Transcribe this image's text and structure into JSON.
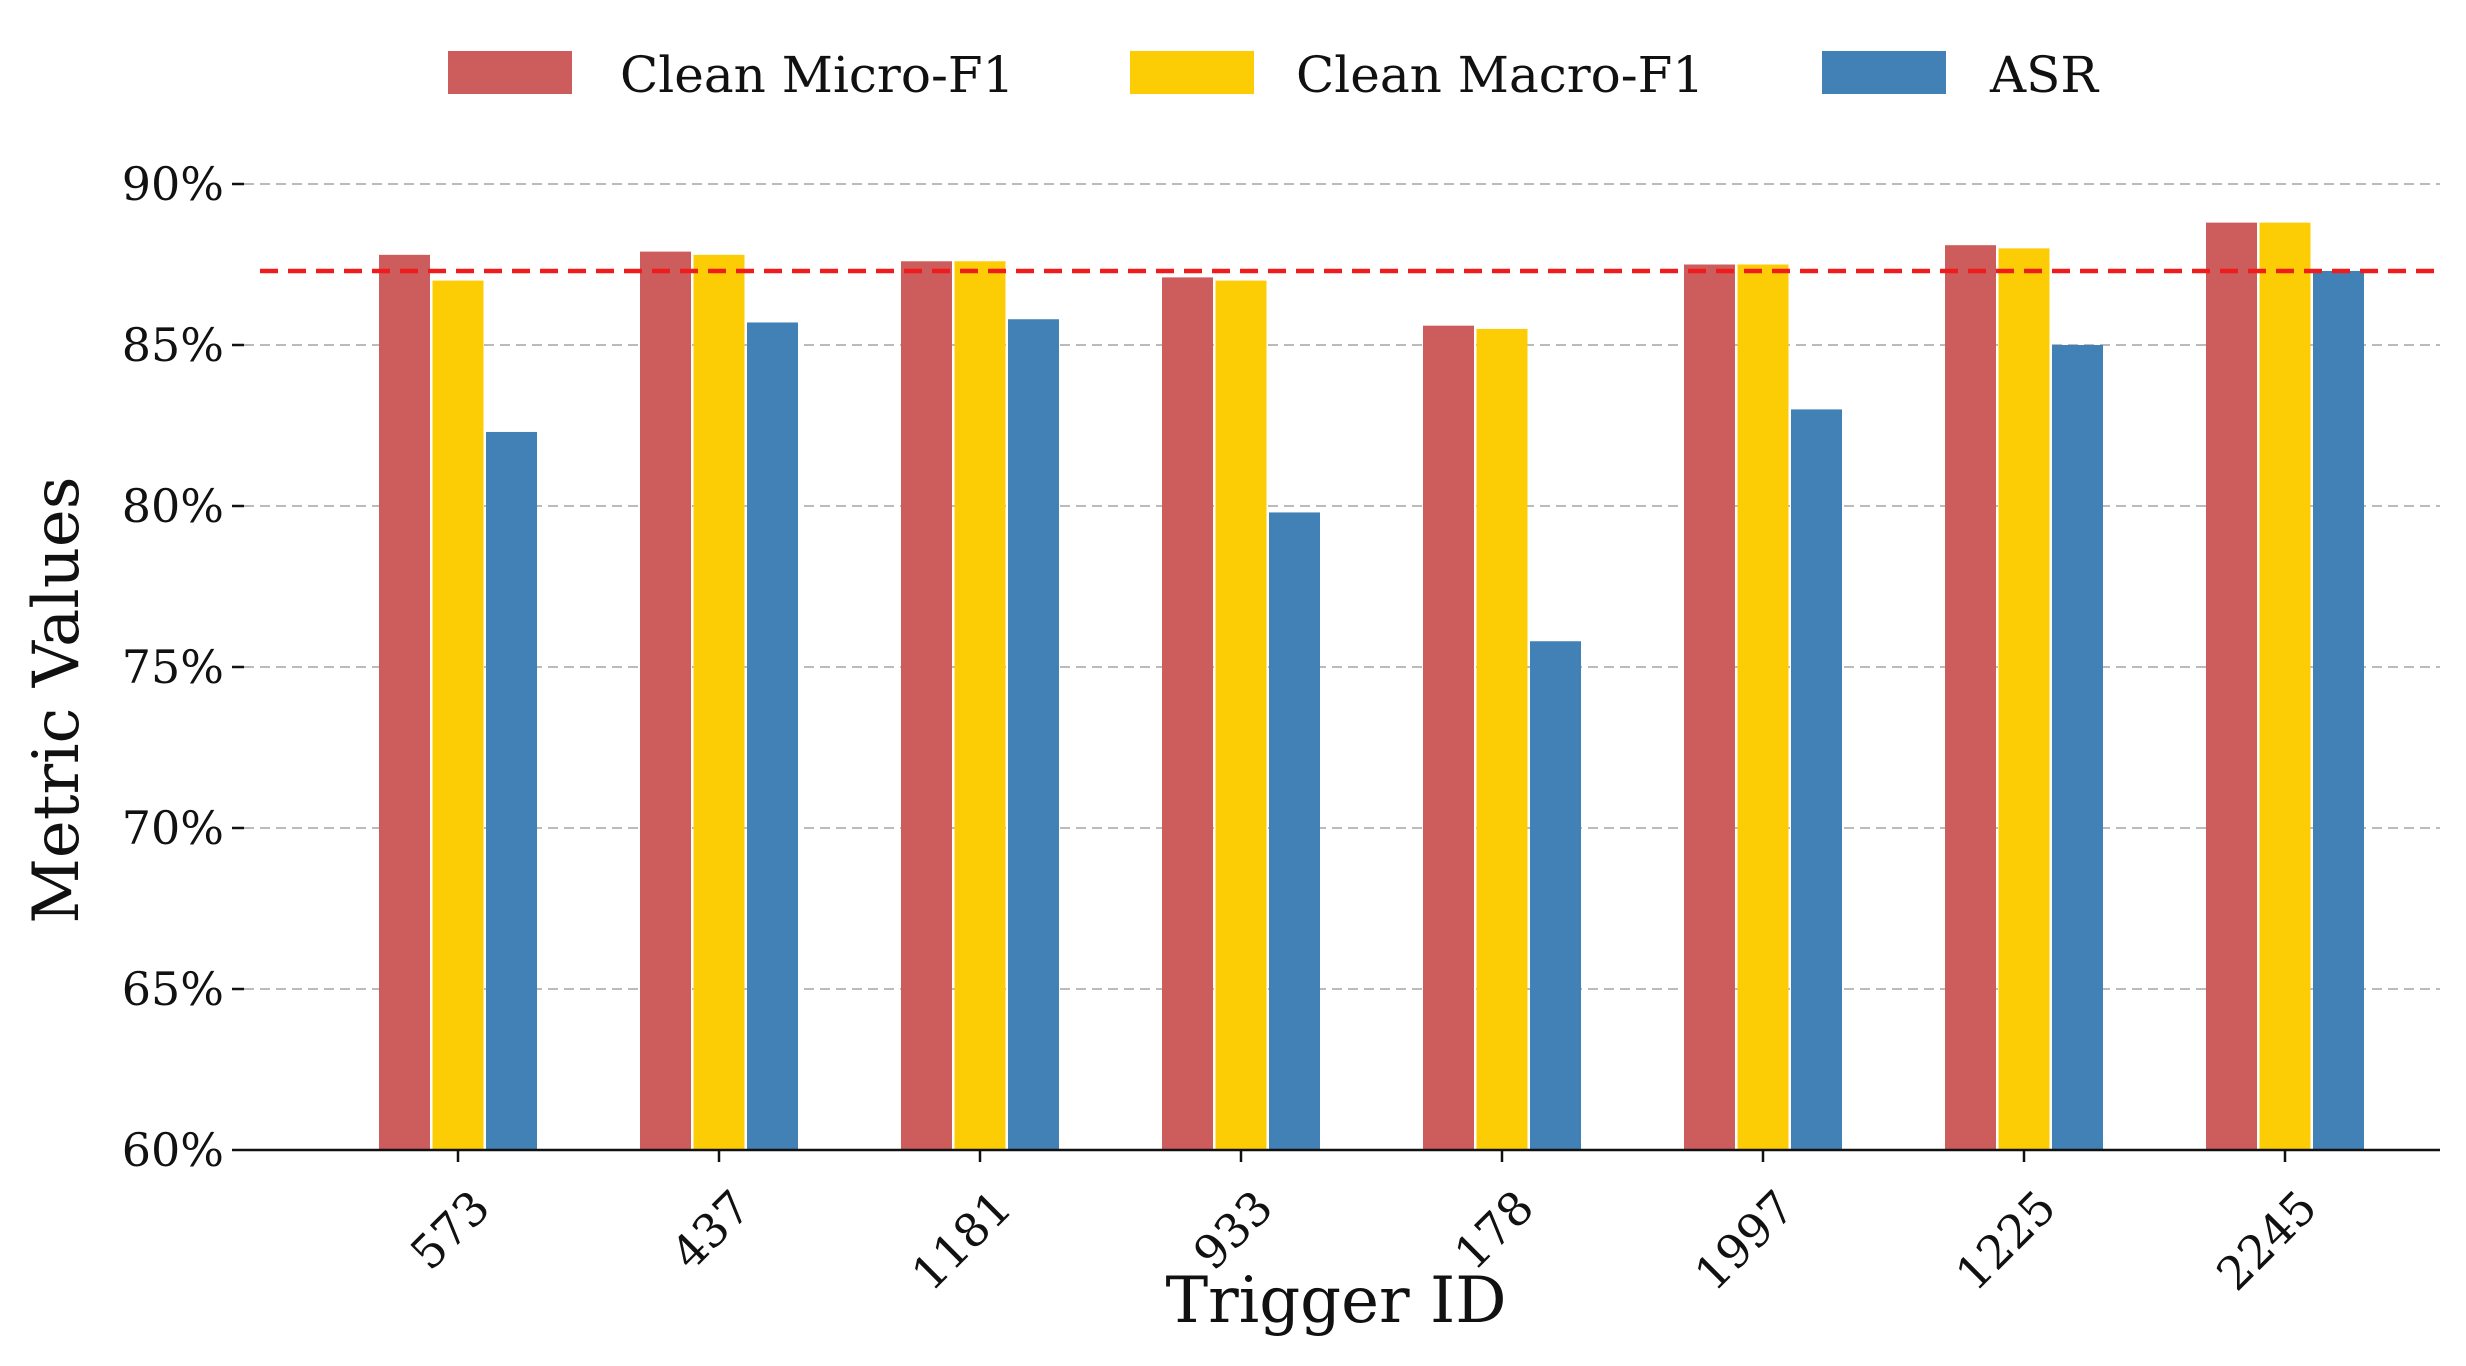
{
  "chart_data": {
    "type": "bar",
    "title": "",
    "xlabel": "Trigger ID",
    "ylabel": "Metric Values",
    "categories": [
      "573",
      "437",
      "1181",
      "933",
      "178",
      "1997",
      "1225",
      "2245"
    ],
    "series": [
      {
        "name": "Clean Micro-F1",
        "color": "#cd5c5c",
        "values": [
          87.8,
          87.9,
          87.6,
          87.1,
          85.6,
          87.5,
          88.1,
          88.8
        ]
      },
      {
        "name": "Clean Macro-F1",
        "color": "#fccc04",
        "values": [
          87.0,
          87.8,
          87.6,
          87.0,
          85.5,
          87.5,
          88.0,
          88.8
        ]
      },
      {
        "name": "ASR",
        "color": "#4181b6",
        "values": [
          82.3,
          85.7,
          85.8,
          79.8,
          75.8,
          83.0,
          85.0,
          87.3
        ]
      }
    ],
    "ylim": [
      60,
      90
    ],
    "yticks": [
      60,
      65,
      70,
      75,
      80,
      85,
      90
    ],
    "ytick_labels": [
      "60%",
      "65%",
      "70%",
      "75%",
      "80%",
      "85%",
      "90%"
    ],
    "reference_line": {
      "value": 87.3,
      "color": "#ee1c1c",
      "style": "dashed"
    },
    "grid": "horizontal dashed",
    "legend_position": "top-center"
  }
}
